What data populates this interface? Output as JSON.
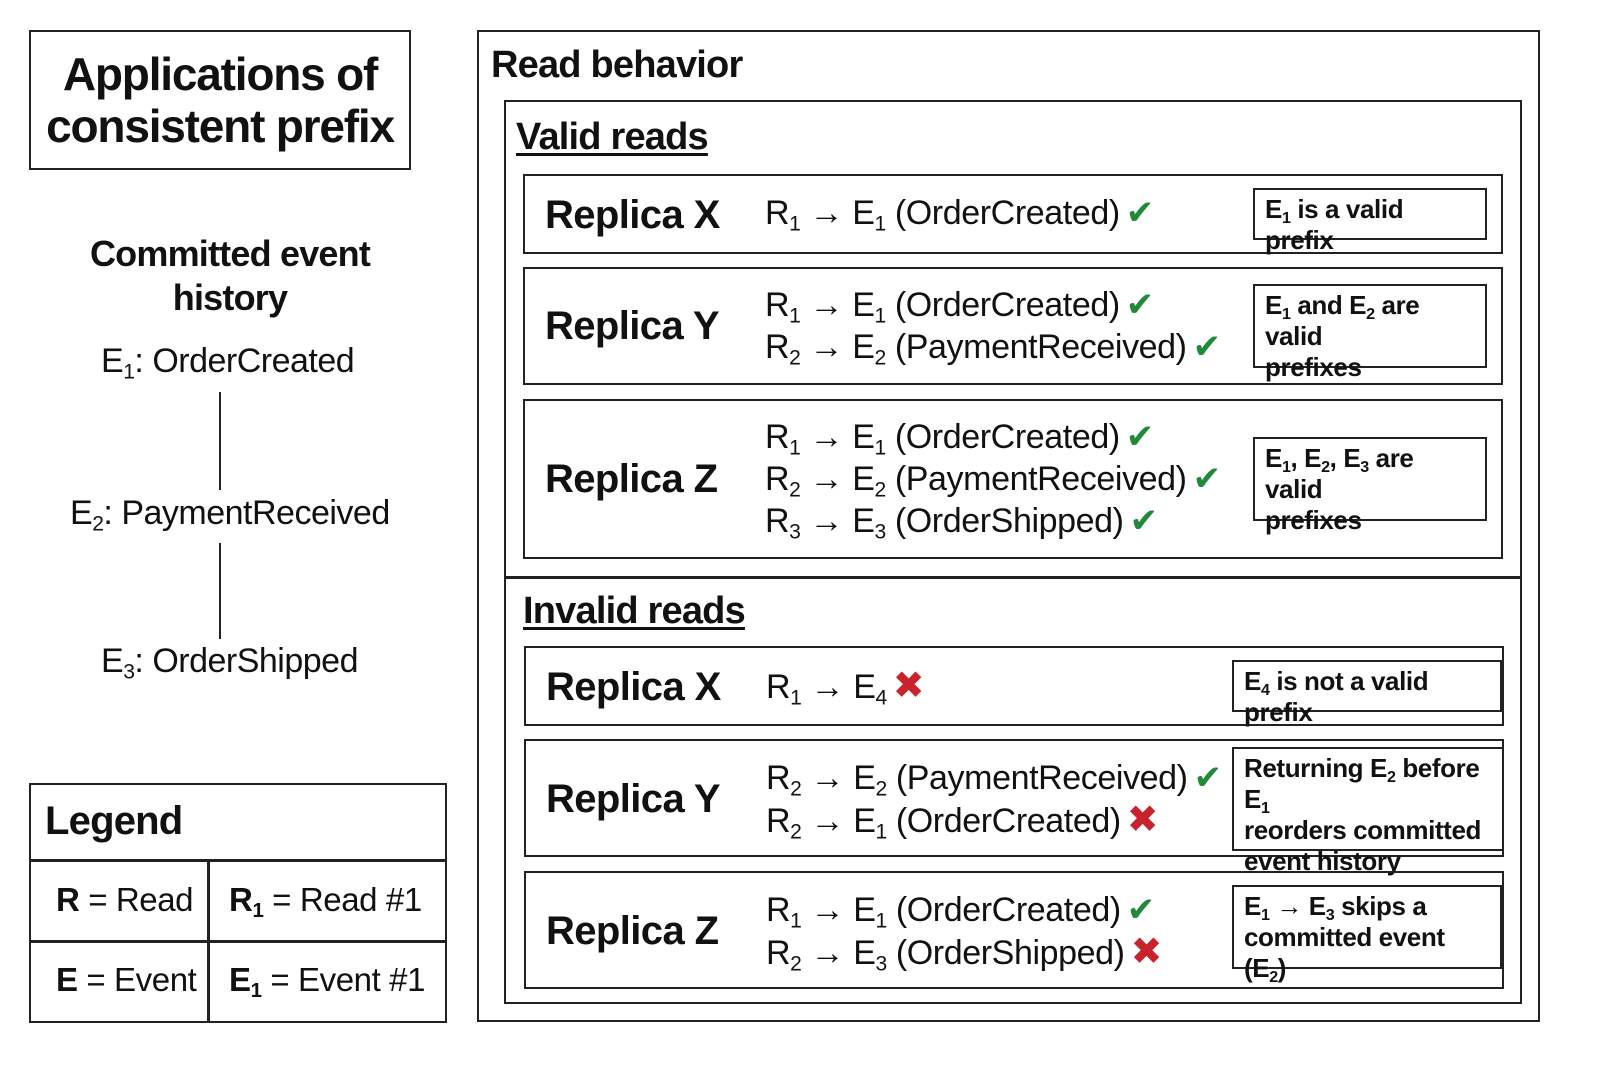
{
  "title": "Applications of consistent prefix",
  "history": {
    "heading": "Committed event history",
    "events": [
      {
        "id": "E",
        "sub": "1",
        "name": ": OrderCreated"
      },
      {
        "id": "E",
        "sub": "2",
        "name": ": PaymentReceived"
      },
      {
        "id": "E",
        "sub": "3",
        "name": ": OrderShipped"
      }
    ]
  },
  "legend": {
    "title": "Legend",
    "r_key": "R",
    "r_val": " = Read",
    "r1_key": "R",
    "r1_sub": "1",
    "r1_val": " = Read #1",
    "e_key": "E",
    "e_val": " = Event",
    "e1_key": "E",
    "e1_sub": "1",
    "e1_val": " = Event #1"
  },
  "read_behavior": {
    "title": "Read behavior",
    "valid": {
      "title": "Valid reads",
      "rows": [
        {
          "replica": "Replica X",
          "reads": [
            {
              "r": "R",
              "rs": "1",
              "arrow": " → ",
              "e": "E",
              "es": "1",
              "label": " (OrderCreated)",
              "mark": "✔"
            }
          ],
          "note": {
            "a": "E",
            "as": "1",
            "b": " is a valid prefix"
          }
        },
        {
          "replica": "Replica Y",
          "reads": [
            {
              "r": "R",
              "rs": "1",
              "arrow": " → ",
              "e": "E",
              "es": "1",
              "label": " (OrderCreated)",
              "mark": "✔"
            },
            {
              "r": "R",
              "rs": "2",
              "arrow": " → ",
              "e": "E",
              "es": "2",
              "label": " (PaymentReceived)",
              "mark": "✔"
            }
          ],
          "note": {
            "a": "E",
            "as": "1",
            "b": " and E",
            "bs": "2",
            "c": " are valid",
            "d": "prefixes"
          }
        },
        {
          "replica": "Replica Z",
          "reads": [
            {
              "r": "R",
              "rs": "1",
              "arrow": " → ",
              "e": "E",
              "es": "1",
              "label": " (OrderCreated)",
              "mark": "✔"
            },
            {
              "r": "R",
              "rs": "2",
              "arrow": " → ",
              "e": "E",
              "es": "2",
              "label": " (PaymentReceived)",
              "mark": "✔"
            },
            {
              "r": "R",
              "rs": "3",
              "arrow": " → ",
              "e": "E",
              "es": "3",
              "label": " (OrderShipped)",
              "mark": "✔"
            }
          ],
          "note": {
            "a": "E",
            "as": "1",
            "b": ", E",
            "bs": "2",
            "c": ", E",
            "cs": "3",
            "d": " are valid",
            "e": "prefixes"
          }
        }
      ]
    },
    "invalid": {
      "title": "Invalid reads",
      "rows": [
        {
          "replica": "Replica X",
          "reads": [
            {
              "r": "R",
              "rs": "1",
              "arrow": " → ",
              "e": "E",
              "es": "4",
              "label": "",
              "mark": "✖"
            }
          ],
          "note": {
            "a": "E",
            "as": "4",
            "b": " is not a valid prefix"
          }
        },
        {
          "replica": "Replica Y",
          "reads": [
            {
              "r": "R",
              "rs": "2",
              "arrow": " → ",
              "e": "E",
              "es": "2",
              "label": " (PaymentReceived)",
              "mark": "✔"
            },
            {
              "r": "R",
              "rs": "2",
              "arrow": " → ",
              "e": "E",
              "es": "1",
              "label": " (OrderCreated)",
              "mark": "✖"
            }
          ],
          "note": {
            "a": "Returning E",
            "as": "2",
            "b": " before E",
            "bs": "1",
            "c": "reorders committed",
            "d": "event history"
          }
        },
        {
          "replica": "Replica Z",
          "reads": [
            {
              "r": "R",
              "rs": "1",
              "arrow": " → ",
              "e": "E",
              "es": "1",
              "label": " (OrderCreated)",
              "mark": "✔"
            },
            {
              "r": "R",
              "rs": "2",
              "arrow": " → ",
              "e": "E",
              "es": "3",
              "label": " (OrderShipped)",
              "mark": "✖"
            }
          ],
          "note": {
            "a": "E",
            "as": "1",
            "b": " → E",
            "bs": "3",
            "c": " skips a",
            "d": "committed event (E",
            "ds": "2",
            "e": ")"
          }
        }
      ]
    }
  },
  "colors": {
    "check": "#1f8a3a",
    "cross": "#c8232c"
  }
}
